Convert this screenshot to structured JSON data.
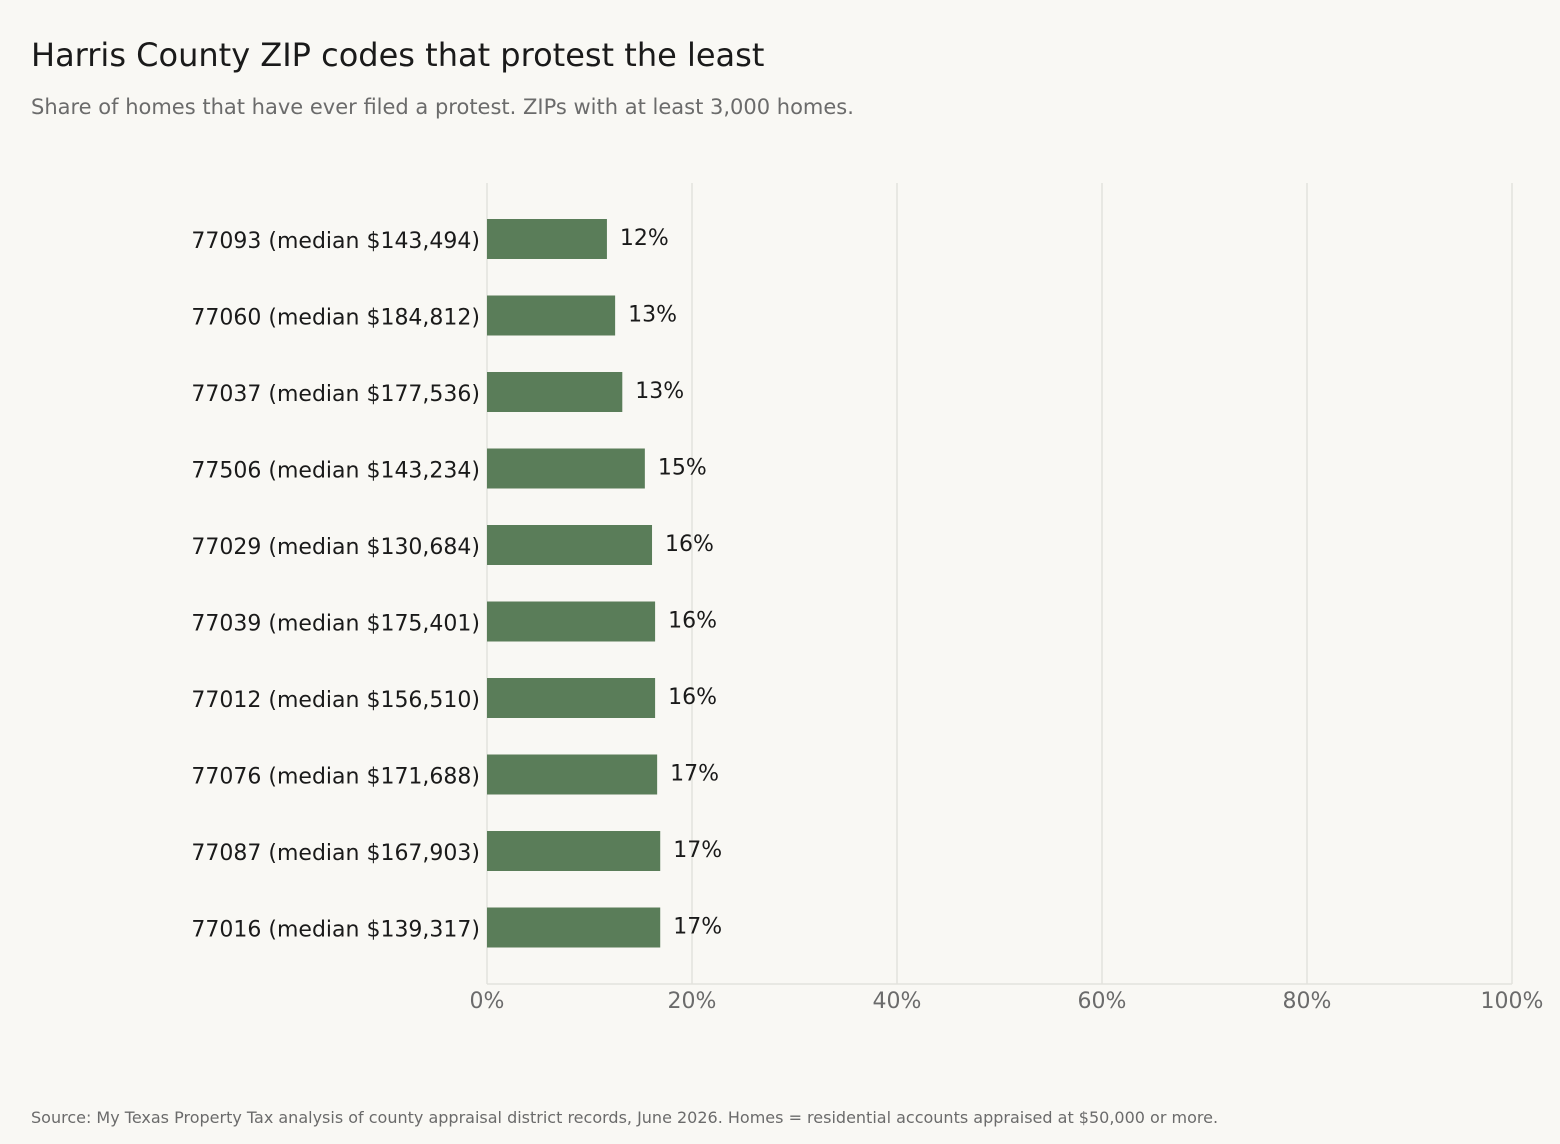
{
  "chart_data": {
    "type": "bar",
    "orientation": "horizontal",
    "title": "Harris County ZIP codes that protest the least",
    "subtitle": "Share of homes that have ever filed a protest. ZIPs with at least 3,000 homes.",
    "source": "Source: My Texas Property Tax analysis of county appraisal district records, June 2026. Homes = residential accounts appraised at $50,000 or more.",
    "categories": [
      "77093  (median $143,494)",
      "77060  (median $184,812)",
      "77037  (median $177,536)",
      "77506  (median $143,234)",
      "77029  (median $130,684)",
      "77039  (median $175,401)",
      "77012  (median $156,510)",
      "77076  (median $171,688)",
      "77087  (median $167,903)",
      "77016  (median $139,317)"
    ],
    "values": [
      11.7,
      12.5,
      13.2,
      15.4,
      16.1,
      16.4,
      16.4,
      16.6,
      16.9,
      16.9
    ],
    "value_labels": [
      "12%",
      "13%",
      "13%",
      "15%",
      "16%",
      "16%",
      "16%",
      "17%",
      "17%",
      "17%"
    ],
    "xlim": [
      0,
      100
    ],
    "xticks": [
      0,
      20,
      40,
      60,
      80,
      100
    ],
    "xtick_labels": [
      "0%",
      "20%",
      "40%",
      "60%",
      "80%",
      "100%"
    ],
    "grid": "vertical",
    "legend": "none",
    "colors": {
      "bar": "#5a7d59",
      "grid": "#e3e2dd",
      "background": "#f9f8f4"
    }
  }
}
